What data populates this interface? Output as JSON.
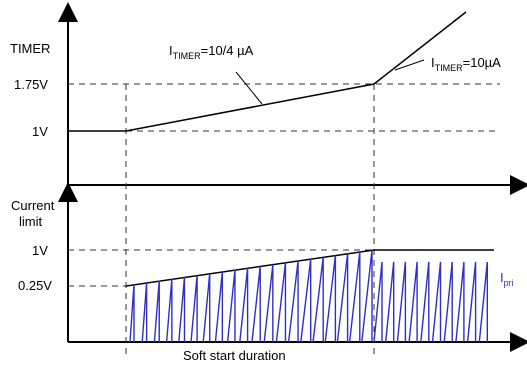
{
  "diagram": {
    "colors": {
      "line": "#000000",
      "guide": "#333333",
      "pulse": "#2f2fc8",
      "ipri": "#2f2fc8"
    },
    "upper_panel": {
      "axis_label": "TIMER",
      "ticks": {
        "t175": "1.75V",
        "t1": "1V"
      },
      "annotations": {
        "slow_prefix": "I",
        "slow_subscript": "TIMER",
        "slow_suffix": "=10/4 µA",
        "fast_prefix": "I",
        "fast_subscript": "TIMER",
        "fast_suffix": "=10µA"
      }
    },
    "lower_panel": {
      "axis_label_line1": "Current",
      "axis_label_line2": "limit",
      "ticks": {
        "t1": "1V",
        "t025": "0.25V"
      },
      "ipri_prefix": "I",
      "ipri_subscript": "pri",
      "soft_start_label": "Soft start duration",
      "ramp_pulse_count": 20,
      "steady_pulse_count": 10
    }
  }
}
